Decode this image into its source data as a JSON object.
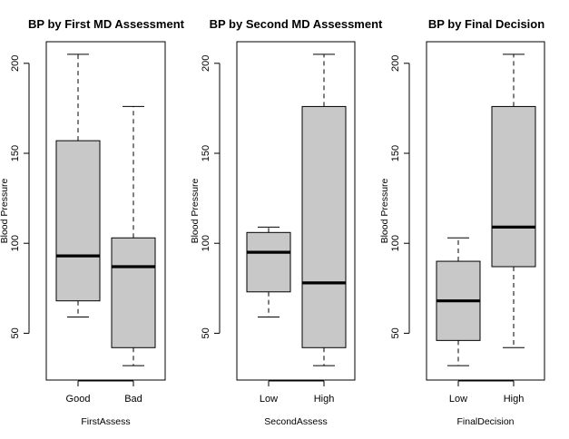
{
  "chart_data": [
    {
      "type": "boxplot",
      "title": "BP by First MD Assessment",
      "xlabel": "FirstAssess",
      "ylabel": "Blood Pressure",
      "ylim": [
        24,
        212
      ],
      "yticks": [
        50,
        100,
        150,
        200
      ],
      "categories": [
        "Good",
        "Bad"
      ],
      "boxes": [
        {
          "whisker_low": 59,
          "q1": 68,
          "median": 93,
          "q3": 157,
          "whisker_high": 205
        },
        {
          "whisker_low": 32,
          "q1": 42,
          "median": 87,
          "q3": 103,
          "whisker_high": 176
        }
      ]
    },
    {
      "type": "boxplot",
      "title": "BP by Second MD Assessment",
      "xlabel": "SecondAssess",
      "ylabel": "Blood Pressure",
      "ylim": [
        24,
        212
      ],
      "yticks": [
        50,
        100,
        150,
        200
      ],
      "categories": [
        "Low",
        "High"
      ],
      "boxes": [
        {
          "whisker_low": 59,
          "q1": 73,
          "median": 95,
          "q3": 106,
          "whisker_high": 109
        },
        {
          "whisker_low": 32,
          "q1": 42,
          "median": 78,
          "q3": 176,
          "whisker_high": 205
        }
      ]
    },
    {
      "type": "boxplot",
      "title": "BP by Final Decision",
      "xlabel": "FinalDecision",
      "ylabel": "Blood Pressure",
      "ylim": [
        24,
        212
      ],
      "yticks": [
        50,
        100,
        150,
        200
      ],
      "categories": [
        "Low",
        "High"
      ],
      "boxes": [
        {
          "whisker_low": 32,
          "q1": 46,
          "median": 68,
          "q3": 90,
          "whisker_high": 103
        },
        {
          "whisker_low": 42,
          "q1": 87,
          "median": 109,
          "q3": 176,
          "whisker_high": 205
        }
      ]
    }
  ],
  "colors": {
    "box_fill": "#c8c8c8",
    "line": "#000000",
    "background": "#ffffff"
  }
}
